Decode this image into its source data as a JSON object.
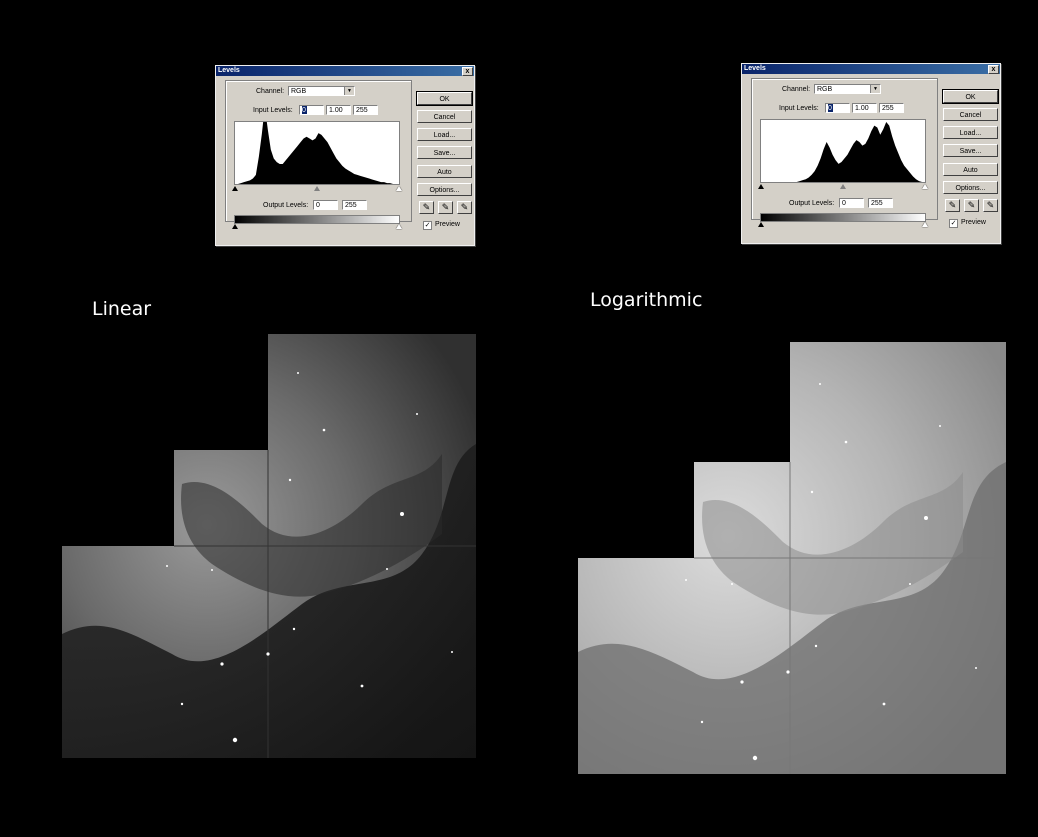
{
  "dialogs": [
    {
      "id": "levels-linear",
      "title": "Levels",
      "close": "x",
      "channel_label": "Channel:",
      "channel_value": "RGB",
      "input_label": "Input Levels:",
      "input_values": [
        "0",
        "1.00",
        "255"
      ],
      "output_label": "Output Levels:",
      "output_values": [
        "0",
        "255"
      ],
      "buttons": [
        "OK",
        "Cancel",
        "Load...",
        "Save...",
        "Auto",
        "Options..."
      ],
      "preview_label": "Preview",
      "preview_checked": true,
      "histogram": [
        0,
        0,
        1,
        2,
        3,
        4,
        6,
        10,
        30,
        55,
        85,
        60,
        38,
        28,
        24,
        22,
        22,
        26,
        30,
        34,
        38,
        42,
        46,
        50,
        52,
        50,
        48,
        50,
        56,
        54,
        50,
        46,
        40,
        34,
        28,
        24,
        20,
        17,
        15,
        13,
        11,
        10,
        9,
        8,
        7,
        6,
        5,
        4,
        3,
        2,
        2,
        1,
        1,
        0,
        0,
        0
      ]
    },
    {
      "id": "levels-log",
      "title": "Levels",
      "close": "x",
      "channel_label": "Channel:",
      "channel_value": "RGB",
      "input_label": "Input Levels:",
      "input_values": [
        "0",
        "1.00",
        "255"
      ],
      "output_label": "Output Levels:",
      "output_values": [
        "0",
        "255"
      ],
      "buttons": [
        "OK",
        "Cancel",
        "Load...",
        "Save...",
        "Auto",
        "Options..."
      ],
      "preview_label": "Preview",
      "preview_checked": true,
      "histogram": [
        0,
        0,
        0,
        0,
        0,
        0,
        0,
        0,
        0,
        0,
        0,
        0,
        0,
        1,
        2,
        3,
        5,
        8,
        12,
        18,
        26,
        36,
        44,
        38,
        30,
        24,
        20,
        22,
        26,
        30,
        36,
        42,
        46,
        44,
        40,
        42,
        48,
        56,
        62,
        60,
        52,
        58,
        66,
        62,
        50,
        40,
        32,
        24,
        18,
        14,
        10,
        6,
        3,
        1,
        0,
        0
      ]
    }
  ],
  "captions": {
    "linear": "Linear",
    "log": "Logarithmic"
  },
  "colors": {
    "background": "#000000",
    "dialog_face": "#d4d0c8",
    "titlebar_start": "#0a246a",
    "titlebar_end": "#3a6ea5"
  }
}
